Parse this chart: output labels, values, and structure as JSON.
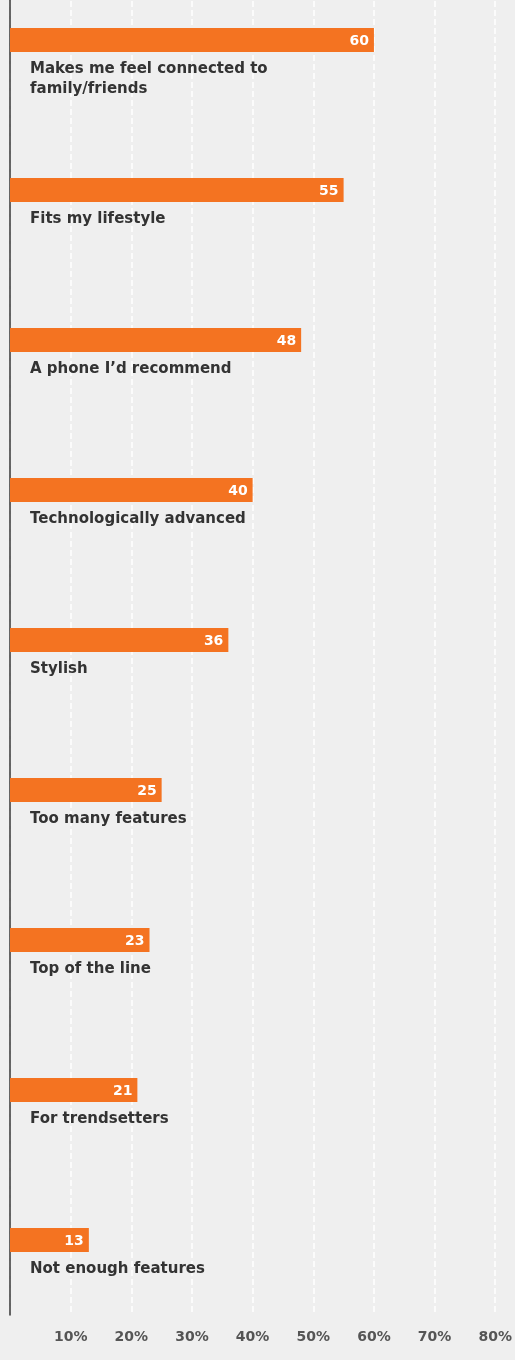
{
  "chart_data": {
    "type": "bar",
    "orientation": "horizontal",
    "categories": [
      "Makes me feel connected to family/friends",
      "Fits my lifestyle",
      "A phone I’d recommend",
      "Technologically advanced",
      "Stylish",
      "Too many features",
      "Top of the line",
      "For trendsetters",
      "Not enough features"
    ],
    "values": [
      60,
      55,
      48,
      40,
      36,
      25,
      23,
      21,
      13
    ],
    "color": "#f47321",
    "xlim": [
      0,
      80
    ],
    "xticks": [
      {
        "value": 10,
        "label": "10%"
      },
      {
        "value": 20,
        "label": "20%"
      },
      {
        "value": 30,
        "label": "30%"
      },
      {
        "value": 40,
        "label": "40%"
      },
      {
        "value": 50,
        "label": "50%"
      },
      {
        "value": 60,
        "label": "60%"
      },
      {
        "value": 70,
        "label": "70%"
      },
      {
        "value": 80,
        "label": "80%"
      }
    ],
    "data_labels": true,
    "grid": "x"
  }
}
